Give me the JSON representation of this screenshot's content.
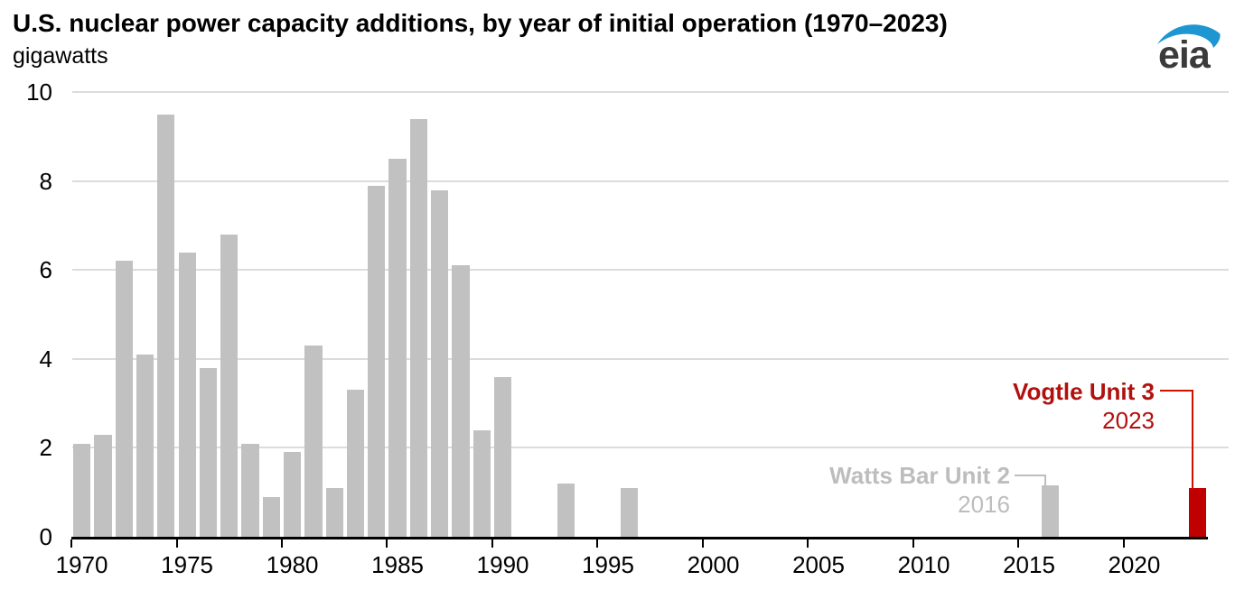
{
  "header": {
    "title": "U.S. nuclear power capacity additions, by year of initial operation (1970–2023)",
    "subtitle": "gigawatts",
    "logo_text": "eia"
  },
  "colors": {
    "bar_gray": "#c1c1c1",
    "bar_red": "#c00000",
    "annotation_gray": "#bdbdbd",
    "annotation_red": "#b2100d",
    "leader_red": "#cc1100",
    "gridline": "#dcdcdc",
    "axis": "#000000",
    "logo_blue": "#1e96d2",
    "logo_text_color": "#3b3b3b"
  },
  "chart_data": {
    "type": "bar",
    "title": "U.S. nuclear power capacity additions, by year of initial operation (1970–2023)",
    "ylabel": "gigawatts",
    "xlabel": "",
    "ylim": [
      0,
      10
    ],
    "yticks": [
      0,
      2,
      4,
      6,
      8,
      10
    ],
    "xticks": [
      1970,
      1975,
      1980,
      1985,
      1990,
      1995,
      2000,
      2005,
      2010,
      2015,
      2020
    ],
    "grid": "horizontal",
    "legend": "none",
    "highlight_year": 2023,
    "categories": [
      1970,
      1971,
      1972,
      1973,
      1974,
      1975,
      1976,
      1977,
      1978,
      1979,
      1980,
      1981,
      1982,
      1983,
      1984,
      1985,
      1986,
      1987,
      1988,
      1989,
      1990,
      1991,
      1992,
      1993,
      1994,
      1995,
      1996,
      1997,
      1998,
      1999,
      2000,
      2001,
      2002,
      2003,
      2004,
      2005,
      2006,
      2007,
      2008,
      2009,
      2010,
      2011,
      2012,
      2013,
      2014,
      2015,
      2016,
      2017,
      2018,
      2019,
      2020,
      2021,
      2022,
      2023
    ],
    "values": [
      2.1,
      2.3,
      6.2,
      4.1,
      9.5,
      6.4,
      3.8,
      6.8,
      2.1,
      0.9,
      1.9,
      4.3,
      1.1,
      3.3,
      7.9,
      8.5,
      9.4,
      7.8,
      6.1,
      2.4,
      3.6,
      0,
      0,
      1.2,
      0,
      0,
      1.1,
      0,
      0,
      0,
      0,
      0,
      0,
      0,
      0,
      0,
      0,
      0,
      0,
      0,
      0,
      0,
      0,
      0,
      0,
      0,
      1.15,
      0,
      0,
      0,
      0,
      0,
      0,
      1.1
    ],
    "annotations": [
      {
        "label": "Watts Bar Unit 2",
        "year_label": "2016",
        "year": 2016,
        "value": 1.15,
        "color_role": "gray"
      },
      {
        "label": "Vogtle Unit 3",
        "year_label": "2023",
        "year": 2023,
        "value": 1.1,
        "color_role": "red"
      }
    ]
  }
}
